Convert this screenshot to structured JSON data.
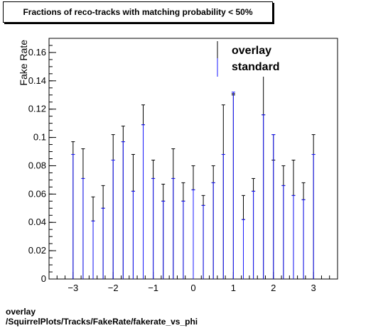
{
  "chart_data": {
    "type": "scatter",
    "title": "Fractions of reco-tracks with matching probability < 50%",
    "xlabel": "",
    "ylabel": "Fake Rate",
    "xlim": [
      -3.6,
      3.6
    ],
    "ylim": [
      0,
      0.17
    ],
    "x_ticks": [
      -3,
      -2,
      -1,
      0,
      1,
      2,
      3
    ],
    "x_tick_labels": [
      "−3",
      "−2",
      "−1",
      "0",
      "1",
      "2",
      "3"
    ],
    "y_ticks": [
      0,
      0.02,
      0.04,
      0.06,
      0.08,
      0.1,
      0.12,
      0.14,
      0.16
    ],
    "y_tick_labels": [
      "0",
      "0.02",
      "0.04",
      "0.06",
      "0.08",
      "0.1",
      "0.12",
      "0.14",
      "0.16"
    ],
    "legend_position": "top-right",
    "x": [
      -3.0,
      -2.75,
      -2.5,
      -2.25,
      -2.0,
      -1.75,
      -1.5,
      -1.25,
      -1.0,
      -0.75,
      -0.5,
      -0.25,
      0.0,
      0.25,
      0.5,
      0.75,
      1.0,
      1.25,
      1.5,
      1.75,
      2.0,
      2.25,
      2.5,
      2.75,
      3.0
    ],
    "series": [
      {
        "name": "overlay",
        "color": "#000000",
        "values": [
          0.088,
          0.071,
          0.041,
          0.05,
          0.084,
          0.097,
          0.062,
          0.109,
          0.071,
          0.055,
          0.071,
          0.055,
          0.063,
          0.052,
          0.068,
          0.088,
          0.13,
          0.042,
          0.062,
          0.116,
          0.084,
          0.066,
          0.059,
          0.056,
          0.088
        ],
        "err_high": [
          0.097,
          0.092,
          0.058,
          0.066,
          0.102,
          0.108,
          0.088,
          0.123,
          0.084,
          0.067,
          0.092,
          0.068,
          0.08,
          0.059,
          0.08,
          0.123,
          0.131,
          0.059,
          0.071,
          0.155,
          0.102,
          0.08,
          0.084,
          0.068,
          0.102
        ]
      },
      {
        "name": "standard",
        "color": "#1a1aff",
        "values": [
          0.088,
          0.071,
          0.041,
          0.05,
          0.084,
          0.097,
          0.062,
          0.109,
          0.071,
          0.055,
          0.071,
          0.055,
          0.063,
          0.052,
          0.068,
          0.088,
          0.132,
          0.042,
          0.062,
          0.116,
          0.102,
          0.066,
          0.059,
          0.056,
          0.088
        ]
      }
    ]
  },
  "caption": {
    "line1": "overlay",
    "line2": "/SquirrelPlots/Tracks/FakeRate/fakerate_vs_phi"
  }
}
